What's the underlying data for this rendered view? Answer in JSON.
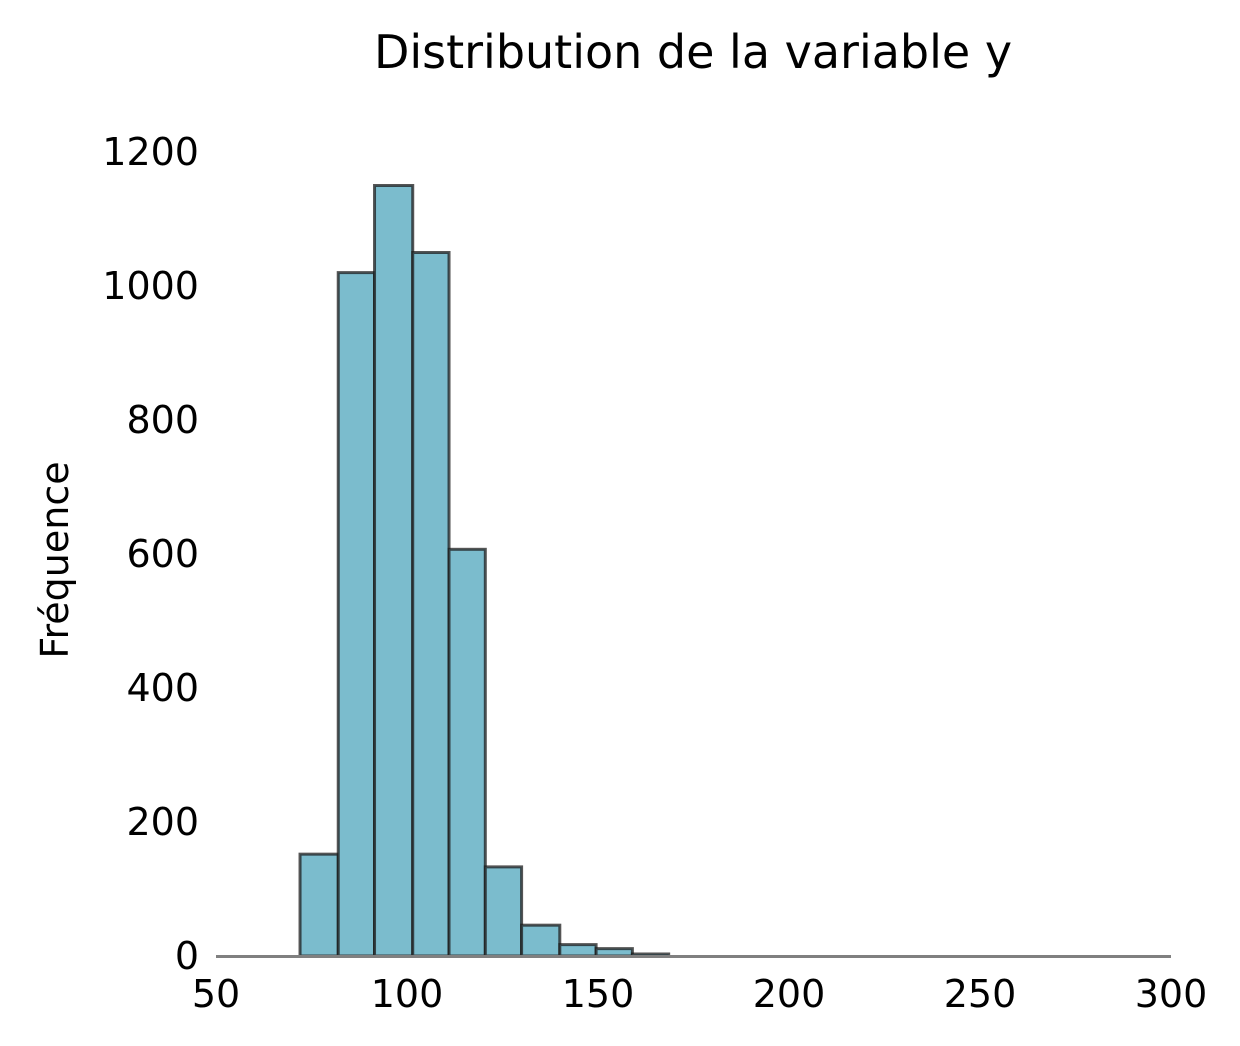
{
  "chart_data": {
    "type": "bar",
    "title": "Distribution de la variable y",
    "xlabel": "",
    "ylabel": "Fréquence",
    "xlim": [
      50,
      300
    ],
    "ylim": [
      0,
      1200
    ],
    "xticks": [
      "50",
      "100",
      "150",
      "200",
      "250",
      "300"
    ],
    "yticks": [
      "0",
      "200",
      "400",
      "600",
      "800",
      "1000",
      "1200"
    ],
    "grid": false,
    "bins": [
      {
        "x0": 72,
        "x1": 82,
        "value": 152
      },
      {
        "x0": 82,
        "x1": 91.5,
        "value": 1020
      },
      {
        "x0": 91.5,
        "x1": 101.5,
        "value": 1150
      },
      {
        "x0": 101.5,
        "x1": 111,
        "value": 1050
      },
      {
        "x0": 111,
        "x1": 120.5,
        "value": 607
      },
      {
        "x0": 120.5,
        "x1": 130,
        "value": 133
      },
      {
        "x0": 130,
        "x1": 140,
        "value": 46
      },
      {
        "x0": 140,
        "x1": 149.5,
        "value": 17
      },
      {
        "x0": 149.5,
        "x1": 159,
        "value": 11
      },
      {
        "x0": 159,
        "x1": 168.5,
        "value": 3
      }
    ],
    "colors": {
      "bar_fill": "#7bbccd",
      "bar_edge": "#1c1c1c",
      "axis": "#808080"
    }
  }
}
